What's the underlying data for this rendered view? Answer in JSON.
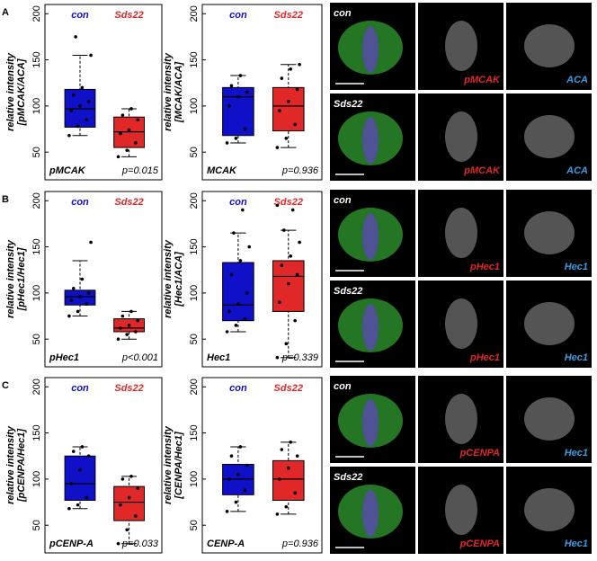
{
  "chart_data": [
    {
      "type": "box",
      "ylabel": [
        "relative intensity",
        "[pMCAK/ACA]"
      ],
      "label": "pMCAK",
      "annotation": "p=0.015",
      "ylim": [
        20,
        210
      ],
      "yticks": [
        50,
        100,
        150,
        200
      ],
      "series": [
        {
          "name": "con",
          "color": "#1010c8",
          "whisker_low": 68,
          "q1": 77,
          "median": 97,
          "q3": 118,
          "whisker_high": 155,
          "points": [
            68,
            78,
            85,
            95,
            100,
            105,
            112,
            120,
            155,
            175
          ]
        },
        {
          "name": "Sds22",
          "color": "#e02828",
          "whisker_low": 45,
          "q1": 55,
          "median": 72,
          "q3": 88,
          "whisker_high": 97,
          "points": [
            45,
            52,
            60,
            70,
            74,
            85,
            90,
            97
          ]
        }
      ]
    },
    {
      "type": "box",
      "ylabel": [
        "relative intensity",
        "[MCAK/ACA]"
      ],
      "label": "MCAK",
      "annotation": "p=0.936",
      "ylim": [
        20,
        210
      ],
      "yticks": [
        50,
        100,
        150,
        200
      ],
      "series": [
        {
          "name": "con",
          "color": "#1010c8",
          "whisker_low": 60,
          "q1": 68,
          "median": 110,
          "q3": 120,
          "whisker_high": 133,
          "points": [
            60,
            65,
            75,
            100,
            110,
            115,
            122,
            133
          ]
        },
        {
          "name": "Sds22",
          "color": "#e02828",
          "whisker_low": 55,
          "q1": 73,
          "median": 100,
          "q3": 120,
          "whisker_high": 145,
          "points": [
            55,
            65,
            80,
            95,
            105,
            118,
            130,
            140,
            145
          ]
        }
      ]
    },
    {
      "type": "box",
      "ylabel": [
        "relative intensity",
        "[pHec1/Hec1]"
      ],
      "label": "pHec1",
      "annotation": "p<0.001",
      "ylim": [
        20,
        210
      ],
      "yticks": [
        50,
        100,
        150,
        200
      ],
      "series": [
        {
          "name": "con",
          "color": "#1010c8",
          "whisker_low": 75,
          "q1": 87,
          "median": 96,
          "q3": 103,
          "whisker_high": 135,
          "points": [
            75,
            80,
            88,
            92,
            96,
            100,
            105,
            115,
            155
          ]
        },
        {
          "name": "Sds22",
          "color": "#e02828",
          "whisker_low": 50,
          "q1": 58,
          "median": 62,
          "q3": 72,
          "whisker_high": 80,
          "points": [
            50,
            55,
            58,
            62,
            65,
            70,
            75,
            80
          ]
        }
      ]
    },
    {
      "type": "box",
      "ylabel": [
        "relative intensity",
        "[Hec1/ACA]"
      ],
      "label": "Hec1",
      "annotation": "p=0.339",
      "ylim": [
        20,
        210
      ],
      "yticks": [
        50,
        100,
        150,
        200
      ],
      "series": [
        {
          "name": "con",
          "color": "#1010c8",
          "whisker_low": 58,
          "q1": 70,
          "median": 87,
          "q3": 133,
          "whisker_high": 165,
          "points": [
            58,
            65,
            72,
            80,
            88,
            100,
            120,
            135,
            150,
            165,
            190
          ]
        },
        {
          "name": "Sds22",
          "color": "#e02828",
          "whisker_low": 30,
          "q1": 80,
          "median": 118,
          "q3": 135,
          "whisker_high": 168,
          "points": [
            30,
            45,
            70,
            90,
            110,
            120,
            130,
            140,
            155,
            168,
            190,
            195
          ]
        }
      ]
    },
    {
      "type": "box",
      "ylabel": [
        "relative intensity",
        "[pCENPA/Hec1]"
      ],
      "label": "pCENP-A",
      "annotation": "p=0.033",
      "ylim": [
        20,
        210
      ],
      "yticks": [
        50,
        100,
        150,
        200
      ],
      "series": [
        {
          "name": "con",
          "color": "#1010c8",
          "whisker_low": 68,
          "q1": 77,
          "median": 95,
          "q3": 125,
          "whisker_high": 135,
          "points": [
            68,
            72,
            80,
            95,
            110,
            125,
            130,
            135
          ]
        },
        {
          "name": "Sds22",
          "color": "#e02828",
          "whisker_low": 30,
          "q1": 55,
          "median": 75,
          "q3": 92,
          "whisker_high": 103,
          "points": [
            30,
            45,
            60,
            72,
            80,
            90,
            100,
            103
          ]
        }
      ]
    },
    {
      "type": "box",
      "ylabel": [
        "relative intensity",
        "[CENPA/Hec1]"
      ],
      "label": "CENP-A",
      "annotation": "p=0.936",
      "ylim": [
        20,
        210
      ],
      "yticks": [
        50,
        100,
        150,
        200
      ],
      "series": [
        {
          "name": "con",
          "color": "#1010c8",
          "whisker_low": 65,
          "q1": 83,
          "median": 100,
          "q3": 116,
          "whisker_high": 135,
          "points": [
            65,
            75,
            88,
            100,
            105,
            115,
            125,
            135
          ]
        },
        {
          "name": "Sds22",
          "color": "#e02828",
          "whisker_low": 62,
          "q1": 77,
          "median": 100,
          "q3": 120,
          "whisker_high": 140,
          "points": [
            62,
            70,
            85,
            100,
            112,
            125,
            132,
            140
          ]
        }
      ]
    }
  ],
  "panels": [
    {
      "letter": "A",
      "images": [
        [
          "con",
          "pMCAK",
          "ACA"
        ],
        [
          "Sds22",
          "pMCAK",
          "ACA"
        ]
      ]
    },
    {
      "letter": "B",
      "images": [
        [
          "con",
          "pHec1",
          "Hec1"
        ],
        [
          "Sds22",
          "pHec1",
          "Hec1"
        ]
      ]
    },
    {
      "letter": "C",
      "images": [
        [
          "con",
          "pCENPA",
          "Hec1"
        ],
        [
          "Sds22",
          "pCENPA",
          "Hec1"
        ]
      ]
    }
  ]
}
